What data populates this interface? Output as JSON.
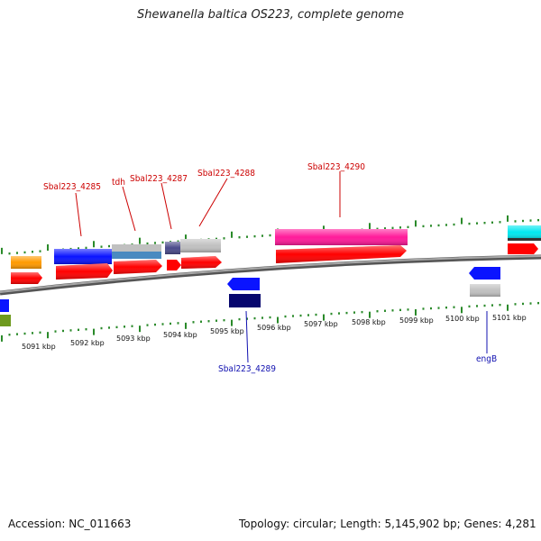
{
  "title": "Shewanella baltica OS223, complete genome",
  "footer": {
    "accession": "Accession: NC_011663",
    "summary": "Topology: circular; Length: 5,145,902 bp; Genes: 4,281"
  },
  "scale_labels": [
    "5091 kbp",
    "5092 kbp",
    "5093 kbp",
    "5094 kbp",
    "5095 kbp",
    "5096 kbp",
    "5097 kbp",
    "5098 kbp",
    "5099 kbp",
    "5100 kbp",
    "5101 kbp"
  ],
  "gene_labels_top": [
    "Sbal223_4285",
    "tdh",
    "Sbal223_4287",
    "Sbal223_4288",
    "Sbal223_4290"
  ],
  "gene_labels_bottom": [
    "Sbal223_4289",
    "engB"
  ],
  "colors": {
    "backbone": "#8a8a8a",
    "ticks": "#2a8a2a",
    "label_top": "#cc0000",
    "label_bottom": "#1010b0",
    "cds": "#ff0000",
    "gene_blue": "#0a14ff",
    "gene_navy": "#06066e",
    "gene_grey": "#c0c0c0",
    "gene_orange": "#ff9a00",
    "gene_magenta": "#ff1a9a",
    "gene_cyan": "#00e8f0",
    "gene_olive": "#6e9a1e",
    "gene_steel": "#4a8ac0",
    "gene_slate": "#4a4a8a"
  }
}
